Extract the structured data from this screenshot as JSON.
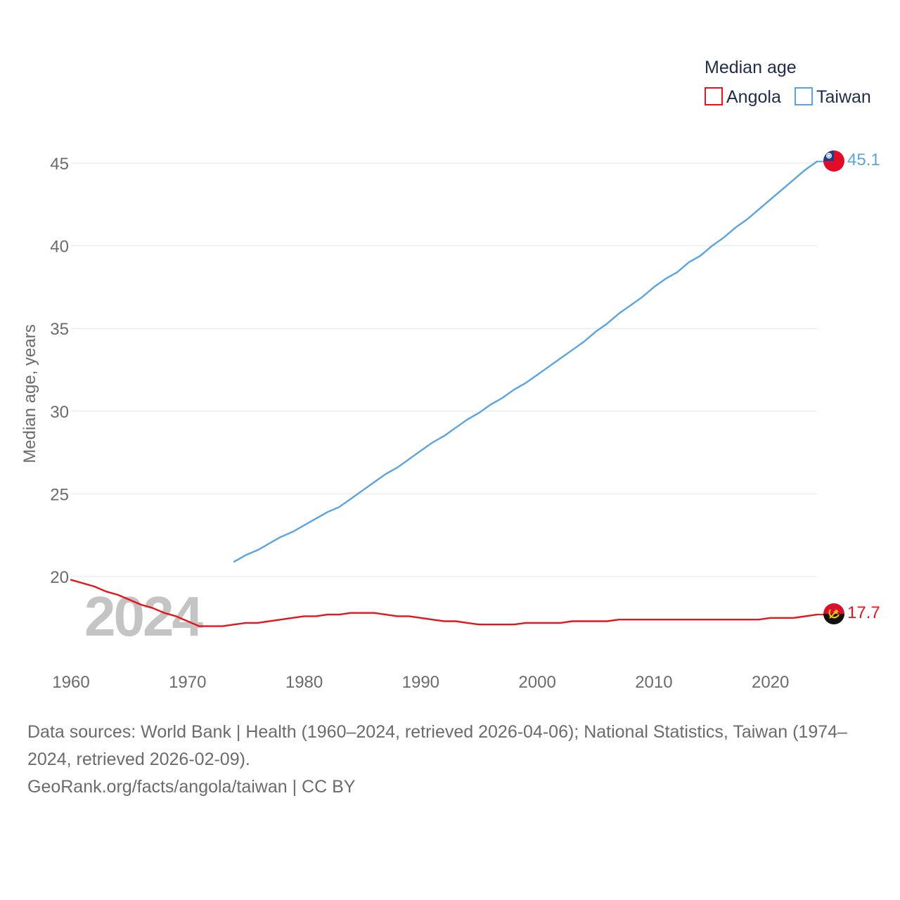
{
  "chart_data": {
    "type": "line",
    "title": "Median age",
    "ylabel": "Median age, years",
    "xlabel": "",
    "xlim": [
      1960,
      2024
    ],
    "ylim": [
      15.5,
      48
    ],
    "x_ticks": [
      1960,
      1970,
      1980,
      1990,
      2000,
      2010,
      2020
    ],
    "y_ticks": [
      20,
      25,
      30,
      35,
      40,
      45
    ],
    "grid": true,
    "legend_position": "top-right",
    "watermark_year": "2024",
    "series": [
      {
        "name": "Angola",
        "color": "#e8141b",
        "end_label": "17.7",
        "flag_icon": "angola-flag-icon",
        "x": [
          1960,
          1961,
          1962,
          1963,
          1964,
          1965,
          1966,
          1967,
          1968,
          1969,
          1970,
          1971,
          1972,
          1973,
          1974,
          1975,
          1976,
          1977,
          1978,
          1979,
          1980,
          1981,
          1982,
          1983,
          1984,
          1985,
          1986,
          1987,
          1988,
          1989,
          1990,
          1991,
          1992,
          1993,
          1994,
          1995,
          1996,
          1997,
          1998,
          1999,
          2000,
          2001,
          2002,
          2003,
          2004,
          2005,
          2006,
          2007,
          2008,
          2009,
          2010,
          2011,
          2012,
          2013,
          2014,
          2015,
          2016,
          2017,
          2018,
          2019,
          2020,
          2021,
          2022,
          2023,
          2024
        ],
        "values": [
          19.8,
          19.6,
          19.4,
          19.1,
          18.9,
          18.6,
          18.3,
          18.1,
          17.8,
          17.6,
          17.3,
          17.0,
          17.0,
          17.0,
          17.1,
          17.2,
          17.2,
          17.3,
          17.4,
          17.5,
          17.6,
          17.6,
          17.7,
          17.7,
          17.8,
          17.8,
          17.8,
          17.7,
          17.6,
          17.6,
          17.5,
          17.4,
          17.3,
          17.3,
          17.2,
          17.1,
          17.1,
          17.1,
          17.1,
          17.2,
          17.2,
          17.2,
          17.2,
          17.3,
          17.3,
          17.3,
          17.3,
          17.4,
          17.4,
          17.4,
          17.4,
          17.4,
          17.4,
          17.4,
          17.4,
          17.4,
          17.4,
          17.4,
          17.4,
          17.4,
          17.5,
          17.5,
          17.5,
          17.6,
          17.7
        ]
      },
      {
        "name": "Taiwan",
        "color": "#5ba4e0",
        "end_label": "45.1",
        "flag_icon": "taiwan-flag-icon",
        "x": [
          1974,
          1975,
          1976,
          1977,
          1978,
          1979,
          1980,
          1981,
          1982,
          1983,
          1984,
          1985,
          1986,
          1987,
          1988,
          1989,
          1990,
          1991,
          1992,
          1993,
          1994,
          1995,
          1996,
          1997,
          1998,
          1999,
          2000,
          2001,
          2002,
          2003,
          2004,
          2005,
          2006,
          2007,
          2008,
          2009,
          2010,
          2011,
          2012,
          2013,
          2014,
          2015,
          2016,
          2017,
          2018,
          2019,
          2020,
          2021,
          2022,
          2023,
          2024
        ],
        "values": [
          20.9,
          21.3,
          21.6,
          22.0,
          22.4,
          22.7,
          23.1,
          23.5,
          23.9,
          24.2,
          24.7,
          25.2,
          25.7,
          26.2,
          26.6,
          27.1,
          27.6,
          28.1,
          28.5,
          29.0,
          29.5,
          29.9,
          30.4,
          30.8,
          31.3,
          31.7,
          32.2,
          32.7,
          33.2,
          33.7,
          34.2,
          34.8,
          35.3,
          35.9,
          36.4,
          36.9,
          37.5,
          38.0,
          38.4,
          39.0,
          39.4,
          40.0,
          40.5,
          41.1,
          41.6,
          42.2,
          42.8,
          43.4,
          44.0,
          44.6,
          45.1
        ]
      }
    ],
    "sources": [
      "Data sources: World Bank | Health (1960–2024, retrieved 2026-04-06); National Statistics, Taiwan (1974–",
      "2024, retrieved 2026-02-09).",
      "GeoRank.org/facts/angola/taiwan | CC BY"
    ]
  }
}
